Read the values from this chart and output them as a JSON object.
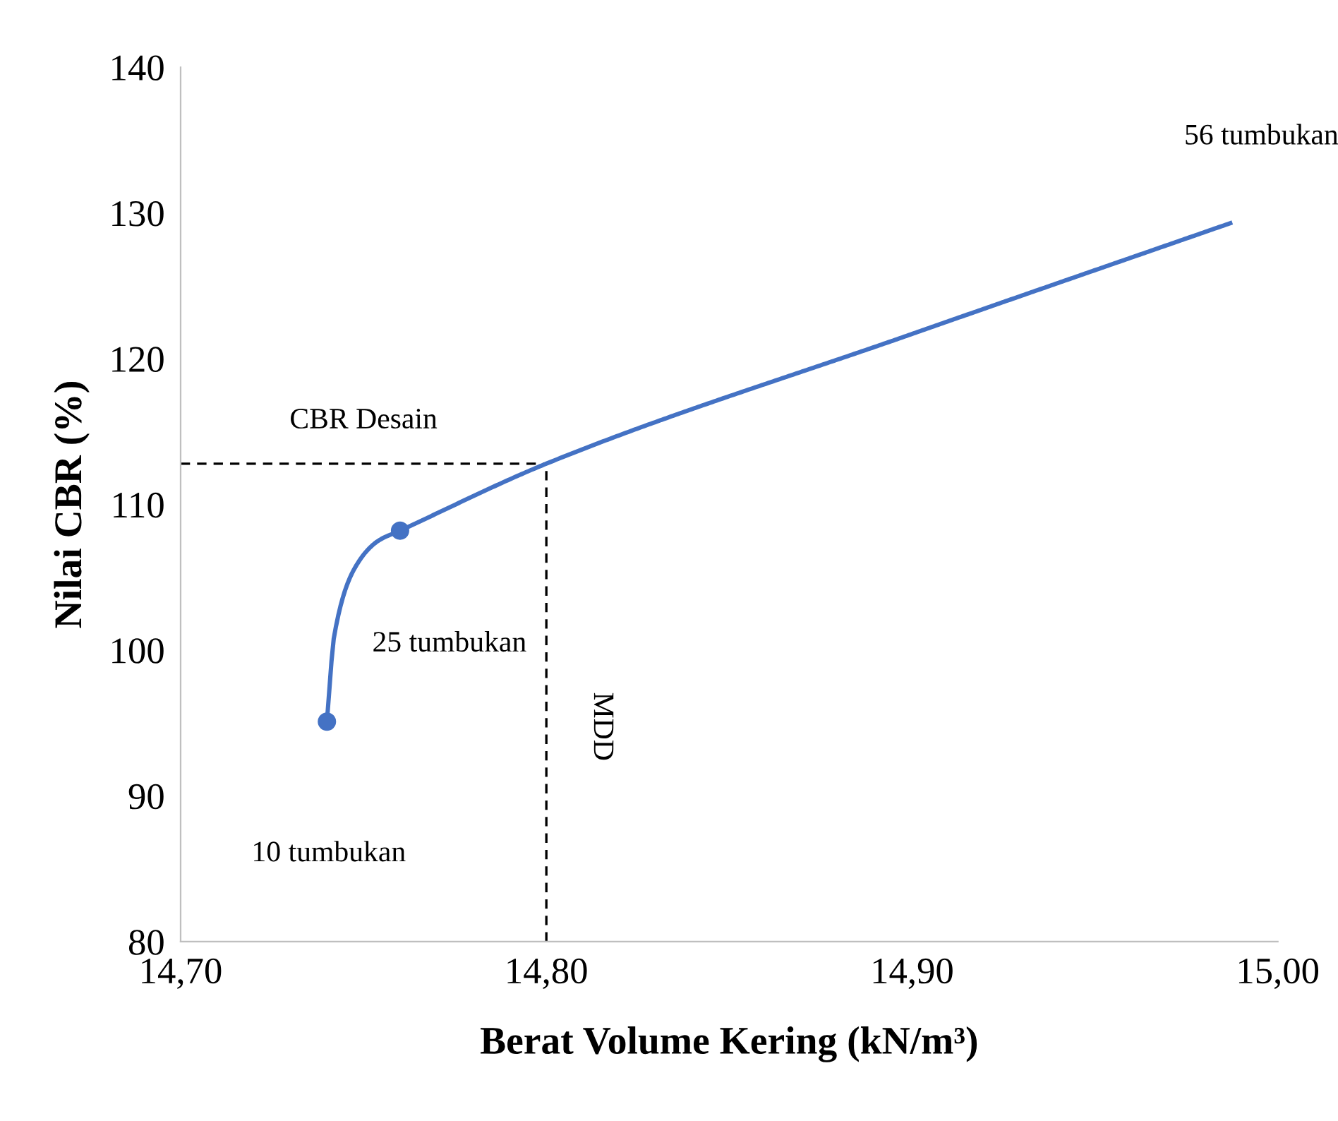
{
  "chart_data": {
    "type": "line",
    "xlabel": "Berat Volume Kering (kN/m³)",
    "ylabel": "Nilai CBR (%)",
    "xlim": [
      14.7,
      15.0
    ],
    "xticks": [
      {
        "value": 14.7,
        "label": "14,70"
      },
      {
        "value": 14.8,
        "label": "14,80"
      },
      {
        "value": 14.9,
        "label": "14,90"
      },
      {
        "value": 15.0,
        "label": "15,00"
      }
    ],
    "ylim": [
      80,
      140
    ],
    "yticks": [
      80,
      90,
      100,
      110,
      120,
      130,
      140
    ],
    "grid": false,
    "series": [
      {
        "color": "#4472c4",
        "marker": "none",
        "line_style": "solid",
        "x": [
          14.74,
          14.742,
          14.748,
          14.754,
          14.76,
          14.8,
          14.9,
          14.987
        ],
        "values": [
          95.1,
          101.0,
          105.8,
          107.5,
          108.2,
          112.8,
          121.7,
          129.3
        ]
      },
      {
        "type": "scatter",
        "color": "#4472c4",
        "marker": "circle",
        "x": [
          14.74,
          14.76
        ],
        "values": [
          95.1,
          108.2
        ]
      }
    ],
    "ref_lines": [
      {
        "axis": "y",
        "value": 112.8,
        "label": "CBR Desain",
        "color": "#000000",
        "line_style": "dashed"
      },
      {
        "axis": "x",
        "value": 14.8,
        "label": "MDD",
        "color": "#000000",
        "line_style": "dashed"
      }
    ],
    "annotations": [
      "10 tumbukan",
      "25 tumbukan",
      "56 tumbukan"
    ]
  }
}
